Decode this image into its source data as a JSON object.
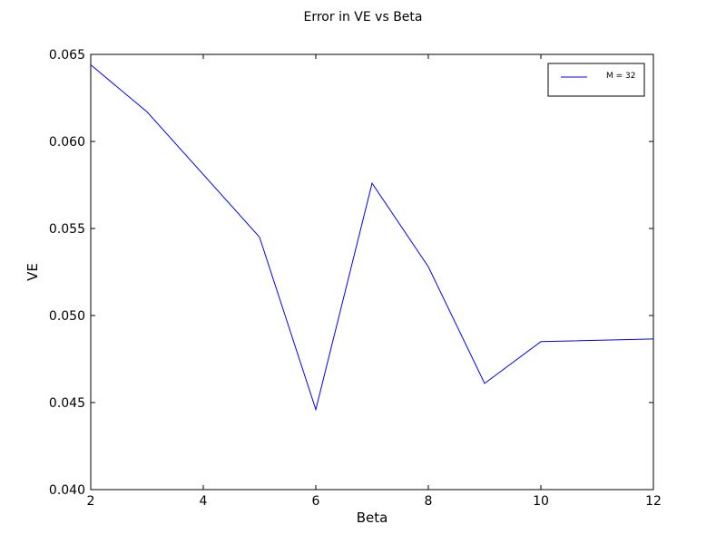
{
  "chart_data": {
    "type": "line",
    "title": "Error in VE vs Beta",
    "xlabel": "Beta",
    "ylabel": "VE",
    "xlim": [
      2,
      12
    ],
    "ylim": [
      0.04,
      0.065
    ],
    "xticks": [
      2,
      4,
      6,
      8,
      10,
      12
    ],
    "xtick_labels": [
      "2",
      "4",
      "6",
      "8",
      "10",
      "12"
    ],
    "yticks": [
      0.04,
      0.045,
      0.05,
      0.055,
      0.06,
      0.065
    ],
    "ytick_labels": [
      "0.040",
      "0.045",
      "0.050",
      "0.055",
      "0.060",
      "0.065"
    ],
    "grid": false,
    "legend_position": "top-right",
    "series": [
      {
        "name": "M = 32",
        "color": "#0000ff",
        "x": [
          2,
          3,
          5,
          6,
          7,
          8,
          9,
          10,
          12
        ],
        "values": [
          0.0644,
          0.0617,
          0.0545,
          0.0446,
          0.0576,
          0.0528,
          0.0461,
          0.0485,
          0.04865
        ]
      }
    ]
  }
}
